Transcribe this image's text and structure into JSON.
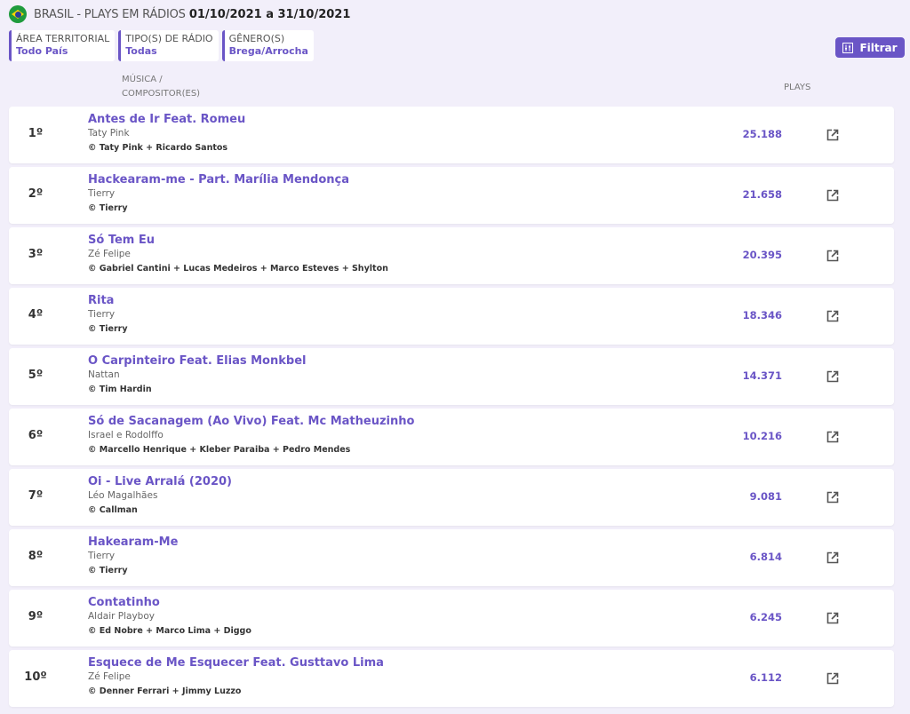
{
  "header": {
    "title_light": "BRASIL - PLAYS EM RÁDIOS",
    "title_period": "01/10/2021 a 31/10/2021",
    "flag_icon": "brazil-flag-icon"
  },
  "filters": [
    {
      "label": "ÁREA TERRITORIAL",
      "value": "Todo País"
    },
    {
      "label": "TIPO(S) DE RÁDIO",
      "value": "Todas"
    },
    {
      "label": "GÊNERO(S)",
      "value": "Brega/Arrocha"
    }
  ],
  "filter_button": {
    "label": "Filtrar",
    "icon": "sliders-icon"
  },
  "columns": {
    "music_line1": "MÚSICA /",
    "music_line2": "COMPOSITOR(ES)",
    "plays": "PLAYS"
  },
  "accent": "#6a55c6",
  "rows": [
    {
      "rank": "1º",
      "song": "Antes de Ir Feat. Romeu",
      "artist": "Taty Pink",
      "composers": "© Taty Pink + Ricardo Santos",
      "plays": "25.188"
    },
    {
      "rank": "2º",
      "song": "Hackearam-me - Part. Marília Mendonça",
      "artist": "Tierry",
      "composers": "© Tierry",
      "plays": "21.658"
    },
    {
      "rank": "3º",
      "song": "Só Tem Eu",
      "artist": "Zé Felipe",
      "composers": "© Gabriel Cantini + Lucas Medeiros + Marco Esteves + Shylton",
      "plays": "20.395"
    },
    {
      "rank": "4º",
      "song": "Rita",
      "artist": "Tierry",
      "composers": "© Tierry",
      "plays": "18.346"
    },
    {
      "rank": "5º",
      "song": "O Carpinteiro Feat. Elias Monkbel",
      "artist": "Nattan",
      "composers": "© Tim Hardin",
      "plays": "14.371"
    },
    {
      "rank": "6º",
      "song": "Só de Sacanagem (Ao Vivo) Feat. Mc Matheuzinho",
      "artist": "Israel e Rodolffo",
      "composers": "© Marcello Henrique + Kleber Paraiba + Pedro Mendes",
      "plays": "10.216"
    },
    {
      "rank": "7º",
      "song": "Oi - Live Arralá (2020)",
      "artist": "Léo Magalhães",
      "composers": "© Callman",
      "plays": "9.081"
    },
    {
      "rank": "8º",
      "song": "Hakearam-Me",
      "artist": "Tierry",
      "composers": "© Tierry",
      "plays": "6.814"
    },
    {
      "rank": "9º",
      "song": "Contatinho",
      "artist": "Aldair Playboy",
      "composers": "© Ed Nobre + Marco Lima + Diggo",
      "plays": "6.245"
    },
    {
      "rank": "10º",
      "song": "Esquece de Me Esquecer Feat. Gusttavo Lima",
      "artist": "Zé Felipe",
      "composers": "© Denner Ferrari + Jimmy Luzzo",
      "plays": "6.112"
    }
  ]
}
